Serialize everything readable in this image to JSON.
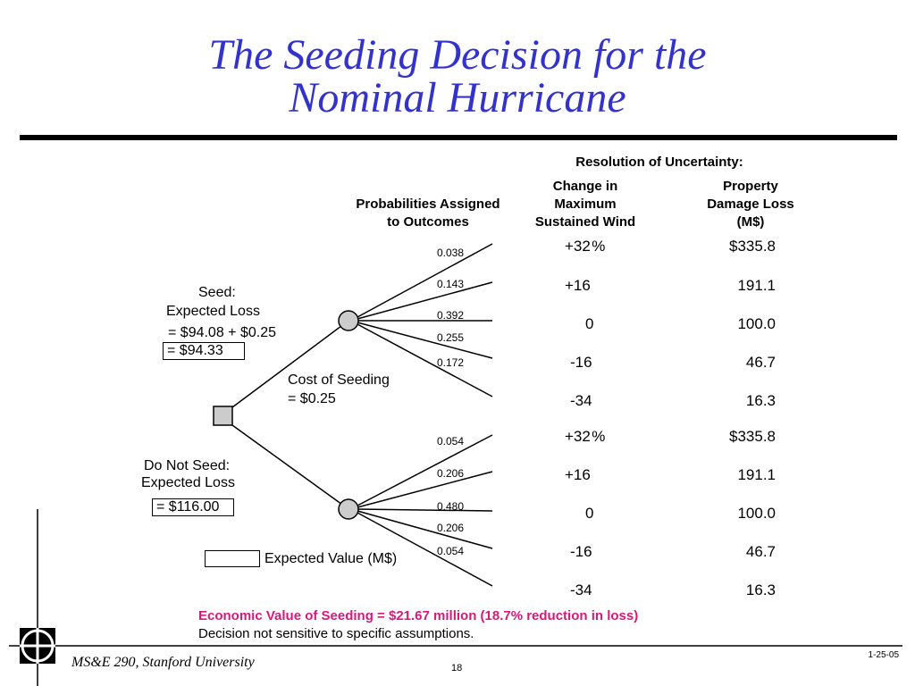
{
  "slide": {
    "title_line1": "The Seeding Decision for the",
    "title_line2": "Nominal Hurricane",
    "footer_course": "MS&E 290, Stanford University",
    "footer_date": "1-25-05",
    "page_number": "18"
  },
  "headers": {
    "resolution": "Resolution of Uncertainty:",
    "prob_line1": "Probabilities Assigned",
    "prob_line2": "to Outcomes",
    "wind_line1": "Change in",
    "wind_line2": "Maximum",
    "wind_line3": "Sustained Wind",
    "damage_line1": "Property",
    "damage_line2": "Damage Loss",
    "damage_line3": "(M$)"
  },
  "seed": {
    "label": "Seed:",
    "expected_loss_label": "Expected Loss",
    "calc": "= $94.08 + $0.25",
    "result": "= $94.33",
    "probabilities": [
      "0.038",
      "0.143",
      "0.392",
      "0.255",
      "0.172"
    ],
    "wind_changes": [
      "+32 %",
      "+16",
      "0",
      "-16",
      "-34"
    ],
    "damage_losses": [
      "$335.8",
      "191.1",
      "100.0",
      "46.7",
      "16.3"
    ]
  },
  "no_seed": {
    "label": "Do Not Seed:",
    "expected_loss_label": "Expected Loss",
    "result": "= $116.00",
    "probabilities": [
      "0.054",
      "0.206",
      "0.480",
      "0.206",
      "0.054"
    ],
    "wind_changes": [
      "+32 %",
      "+16",
      "0",
      "-16",
      "-34"
    ],
    "damage_losses": [
      "$335.8",
      "191.1",
      "100.0",
      "46.7",
      "16.3"
    ]
  },
  "cost": {
    "line1": "Cost of Seeding",
    "line2": "= $0.25"
  },
  "legend": {
    "label": "Expected Value (M$)"
  },
  "summary": {
    "economic_value": "Economic Value of Seeding = $21.67 million (18.7% reduction in loss)",
    "note": "Decision not sensitive to specific assumptions."
  },
  "colors": {
    "title": "#3333cc",
    "highlight": "#d6197a",
    "node_fill": "#cccccc"
  }
}
